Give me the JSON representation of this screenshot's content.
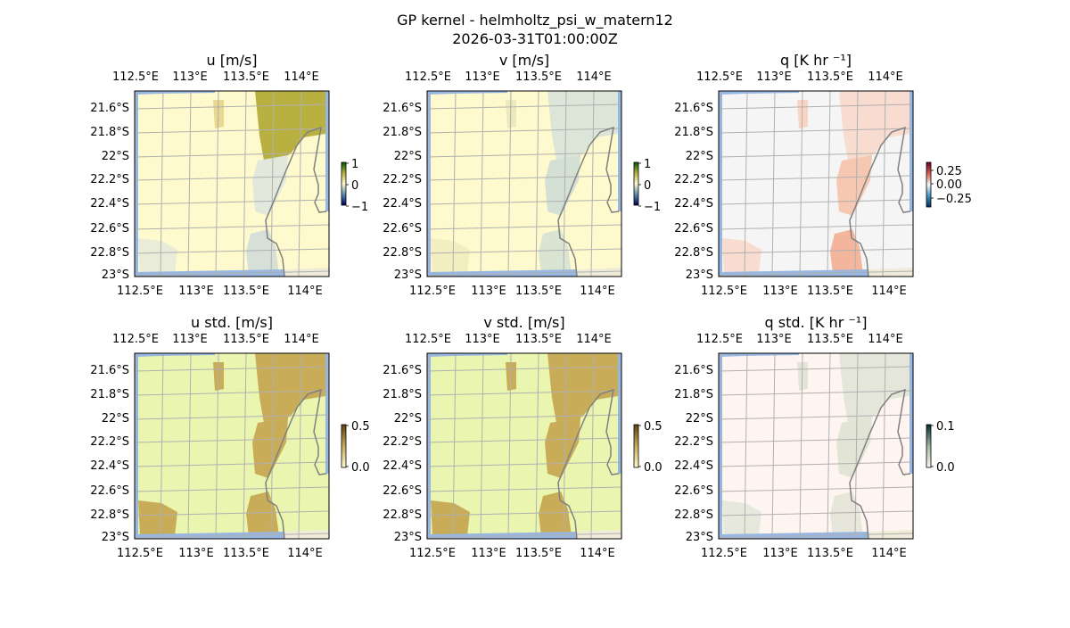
{
  "chart_data": {
    "type": "heatmap",
    "title": "GP kernel - helmholtz_psi_w_matern12",
    "subtitle": "2026-03-31T01:00:00Z",
    "lon_ticks": [
      "112.5°E",
      "113°E",
      "113.5°E",
      "114°E"
    ],
    "lat_ticks": [
      "21.6°S",
      "21.8°S",
      "22°S",
      "22.2°S",
      "22.4°S",
      "22.6°S",
      "22.8°S",
      "23°S"
    ],
    "lon_range": [
      112.47,
      114.2
    ],
    "lat_range": [
      -23.0,
      -21.48
    ],
    "grid": true,
    "panels": [
      {
        "title": "u [m/s]",
        "clim": [
          -1,
          1
        ],
        "cbar_ticks": [
          "1",
          "0",
          "−1"
        ],
        "cbar_colors": [
          "#005a00",
          "#b8b040",
          "#fffacd",
          "#5a8ab0",
          "#00005a"
        ],
        "background": "#fffacd",
        "patches": [
          "#b8b040",
          "#e2e8dc",
          "#d6e0d8",
          "#e8ecd8",
          "#e8d890"
        ]
      },
      {
        "title": "v [m/s]",
        "clim": [
          -1,
          1
        ],
        "cbar_ticks": [
          "1",
          "0",
          "−1"
        ],
        "cbar_colors": [
          "#005a00",
          "#b8b040",
          "#fffacd",
          "#5a8ab0",
          "#00005a"
        ],
        "background": "#fffacd",
        "patches": [
          "#dce6d8",
          "#d4e0d4",
          "#dae4d2",
          "#f2eec0",
          "#eceabc"
        ]
      },
      {
        "title": "q [K hr ⁻¹]",
        "clim": [
          -0.4,
          0.4
        ],
        "cbar_ticks": [
          "0.25",
          "0.00",
          "−0.25"
        ],
        "cbar_colors": [
          "#67001f",
          "#d6604d",
          "#f7f7f7",
          "#4393c3",
          "#053061"
        ],
        "background": "#f5f5f5",
        "patches": [
          "#f8dccf",
          "#f6c8b2",
          "#f3b69c",
          "#f8dccf",
          "#f8d4c4"
        ]
      },
      {
        "title": "u std. [m/s]",
        "clim": [
          0,
          0.6
        ],
        "cbar_ticks": [
          "0.5",
          "0.0"
        ],
        "cbar_colors": [
          "#604010",
          "#c8ac58",
          "#fffacd"
        ],
        "background": "#eaf6b0",
        "patches": [
          "#c8ac58",
          "#c8ac58",
          "#c8ac58",
          "#c8ac58",
          "#c8ac58"
        ]
      },
      {
        "title": "v std. [m/s]",
        "clim": [
          0,
          0.6
        ],
        "cbar_ticks": [
          "0.5",
          "0.0"
        ],
        "cbar_colors": [
          "#604010",
          "#c8ac58",
          "#fffacd"
        ],
        "background": "#eaf6b0",
        "patches": [
          "#c8ac58",
          "#c8ac58",
          "#c8ac58",
          "#c8ac58",
          "#c8ac58"
        ]
      },
      {
        "title": "q std. [K hr ⁻¹]",
        "clim": [
          0,
          0.12
        ],
        "cbar_ticks": [
          "0.1",
          "0.0"
        ],
        "cbar_colors": [
          "#003030",
          "#a0b8a0",
          "#fff5f0"
        ],
        "background": "#fff5f0",
        "patches": [
          "#e4e6da",
          "#e2e4d6",
          "#e6e6da",
          "#e6e8dc",
          "#e4e4d8"
        ]
      }
    ],
    "ocean_color": "#97b6e1",
    "land_color": "#efebd8",
    "coastline_color": "#808080",
    "grid_color": "#b0b0b0"
  }
}
